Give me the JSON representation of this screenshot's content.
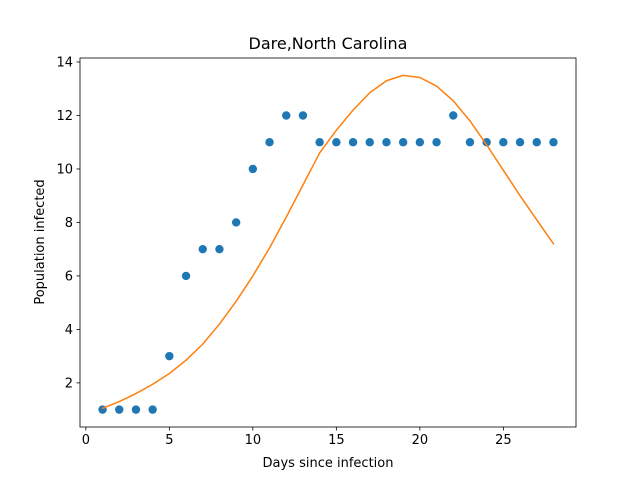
{
  "chart_data": {
    "type": "scatter",
    "title": "Dare,North Carolina",
    "xlabel": "Days since infection",
    "ylabel": "Population infected",
    "xlim": [
      -0.35,
      29.35
    ],
    "ylim": [
      0.35,
      14.15
    ],
    "xticks": [
      0,
      5,
      10,
      15,
      20,
      25
    ],
    "yticks": [
      2,
      4,
      6,
      8,
      10,
      12,
      14
    ],
    "grid": false,
    "series": [
      {
        "kind": "scatter",
        "color": "#1f77b4",
        "x": [
          1,
          2,
          3,
          4,
          5,
          6,
          7,
          8,
          9,
          10,
          11,
          12,
          13,
          14,
          15,
          16,
          17,
          18,
          19,
          20,
          21,
          22,
          23,
          24,
          25,
          26,
          27,
          28
        ],
        "y": [
          1,
          1,
          1,
          1,
          3,
          6,
          7,
          7,
          8,
          10,
          11,
          12,
          12,
          11,
          11,
          11,
          11,
          11,
          11,
          11,
          11,
          12,
          11,
          11,
          11,
          11,
          11,
          11
        ]
      },
      {
        "kind": "line",
        "color": "#ff7f0e",
        "x": [
          1,
          2,
          3,
          4,
          5,
          6,
          7,
          8,
          9,
          10,
          11,
          12,
          13,
          14,
          15,
          16,
          17,
          18,
          19,
          20,
          21,
          22,
          23,
          24,
          25,
          26,
          27,
          28
        ],
        "y": [
          1.05,
          1.3,
          1.6,
          1.95,
          2.35,
          2.85,
          3.45,
          4.2,
          5.05,
          6.0,
          7.05,
          8.2,
          9.4,
          10.6,
          11.45,
          12.2,
          12.85,
          13.3,
          13.5,
          13.42,
          13.1,
          12.55,
          11.8,
          10.9,
          9.95,
          9.0,
          8.1,
          7.2
        ]
      }
    ]
  }
}
